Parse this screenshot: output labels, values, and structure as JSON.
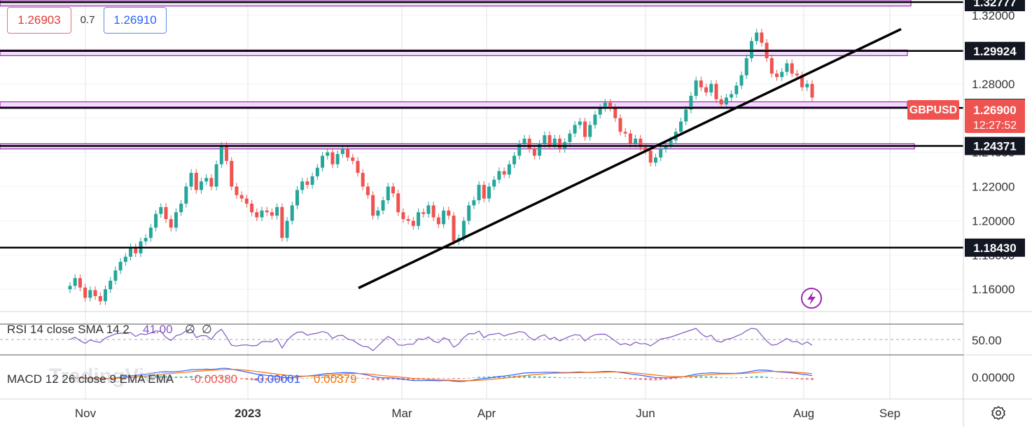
{
  "header": {
    "bid": "1.26903",
    "spread": "0.7",
    "ask": "1.26910"
  },
  "symbol": {
    "name": "GBPUSD",
    "price": "1.26900",
    "countdown": "12:27:52"
  },
  "watermark": "TradingView",
  "chart_data": {
    "type": "candlestick",
    "price_axis": {
      "range": [
        1.147,
        1.329
      ],
      "ticks": [
        "1.16000",
        "1.18000",
        "1.20000",
        "1.22000",
        "1.24000",
        "1.26000",
        "1.28000",
        "1.30000",
        "1.32000"
      ]
    },
    "time_axis": {
      "labels": [
        "Nov",
        "2023",
        "Mar",
        "Apr",
        "Jun",
        "Aug",
        "Sep"
      ]
    },
    "levels": [
      {
        "price": 1.32777,
        "label": "1.32777"
      },
      {
        "price": 1.29924,
        "label": "1.29924"
      },
      {
        "price": 1.26596,
        "label": "1.26596"
      },
      {
        "price": 1.24371,
        "label": "1.24371"
      },
      {
        "price": 1.1843,
        "label": "1.18430"
      }
    ],
    "zones": [
      {
        "low": 1.3255,
        "high": 1.329
      },
      {
        "low": 1.2965,
        "high": 1.2998
      },
      {
        "low": 1.2665,
        "high": 1.2695
      },
      {
        "low": 1.242,
        "high": 1.245
      }
    ],
    "trendline": {
      "from": [
        "Jan 2023",
        1.1607
      ],
      "to": [
        "Sep 2023",
        1.312
      ]
    },
    "candles_close": [
      1.162,
      1.1665,
      1.161,
      1.155,
      1.1595,
      1.156,
      1.153,
      1.16,
      1.165,
      1.171,
      1.176,
      1.179,
      1.1845,
      1.181,
      1.188,
      1.19,
      1.196,
      1.204,
      1.208,
      1.201,
      1.196,
      1.205,
      1.21,
      1.22,
      1.228,
      1.218,
      1.223,
      1.225,
      1.22,
      1.233,
      1.244,
      1.235,
      1.22,
      1.215,
      1.213,
      1.21,
      1.205,
      1.202,
      1.206,
      1.205,
      1.203,
      1.208,
      1.19,
      1.2,
      1.209,
      1.218,
      1.223,
      1.221,
      1.226,
      1.231,
      1.238,
      1.24,
      1.233,
      1.239,
      1.242,
      1.237,
      1.235,
      1.228,
      1.22,
      1.215,
      1.203,
      1.206,
      1.212,
      1.22,
      1.216,
      1.205,
      1.201,
      1.2,
      1.197,
      1.205,
      1.204,
      1.209,
      1.202,
      1.198,
      1.206,
      1.203,
      1.188,
      1.19,
      1.2,
      1.209,
      1.212,
      1.221,
      1.213,
      1.22,
      1.224,
      1.229,
      1.227,
      1.233,
      1.238,
      1.245,
      1.248,
      1.242,
      1.238,
      1.245,
      1.25,
      1.244,
      1.248,
      1.242,
      1.246,
      1.251,
      1.256,
      1.258,
      1.249,
      1.256,
      1.262,
      1.266,
      1.269,
      1.266,
      1.26,
      1.252,
      1.251,
      1.245,
      1.248,
      1.243,
      1.241,
      1.234,
      1.237,
      1.242,
      1.244,
      1.247,
      1.252,
      1.258,
      1.265,
      1.273,
      1.282,
      1.278,
      1.275,
      1.28,
      1.271,
      1.268,
      1.272,
      1.274,
      1.279,
      1.285,
      1.295,
      1.305,
      1.31,
      1.304,
      1.295,
      1.286,
      1.284,
      1.287,
      1.292,
      1.286,
      1.285,
      1.278,
      1.28,
      1.272
    ],
    "rsi": {
      "label": "RSI 14 close SMA 14 2",
      "value": "41.00",
      "extra1": "∅",
      "extra2": "∅",
      "axis_label": "50.00"
    },
    "macd": {
      "label": "MACD 12 26 close 9 EMA EMA",
      "histogram": "-0.00380",
      "macd": "-0.00001",
      "signal": "0.00379",
      "axis_label": "0.00000"
    }
  },
  "colors": {
    "up": "#26a69a",
    "down": "#ef5350",
    "zone_fill": "#ecdff5",
    "zone_border": "#9c27b0",
    "rsi_line": "#7e57c2",
    "macd_line": "#2962ff",
    "signal_line": "#ff6d00",
    "price_tag": "#ef5350"
  }
}
